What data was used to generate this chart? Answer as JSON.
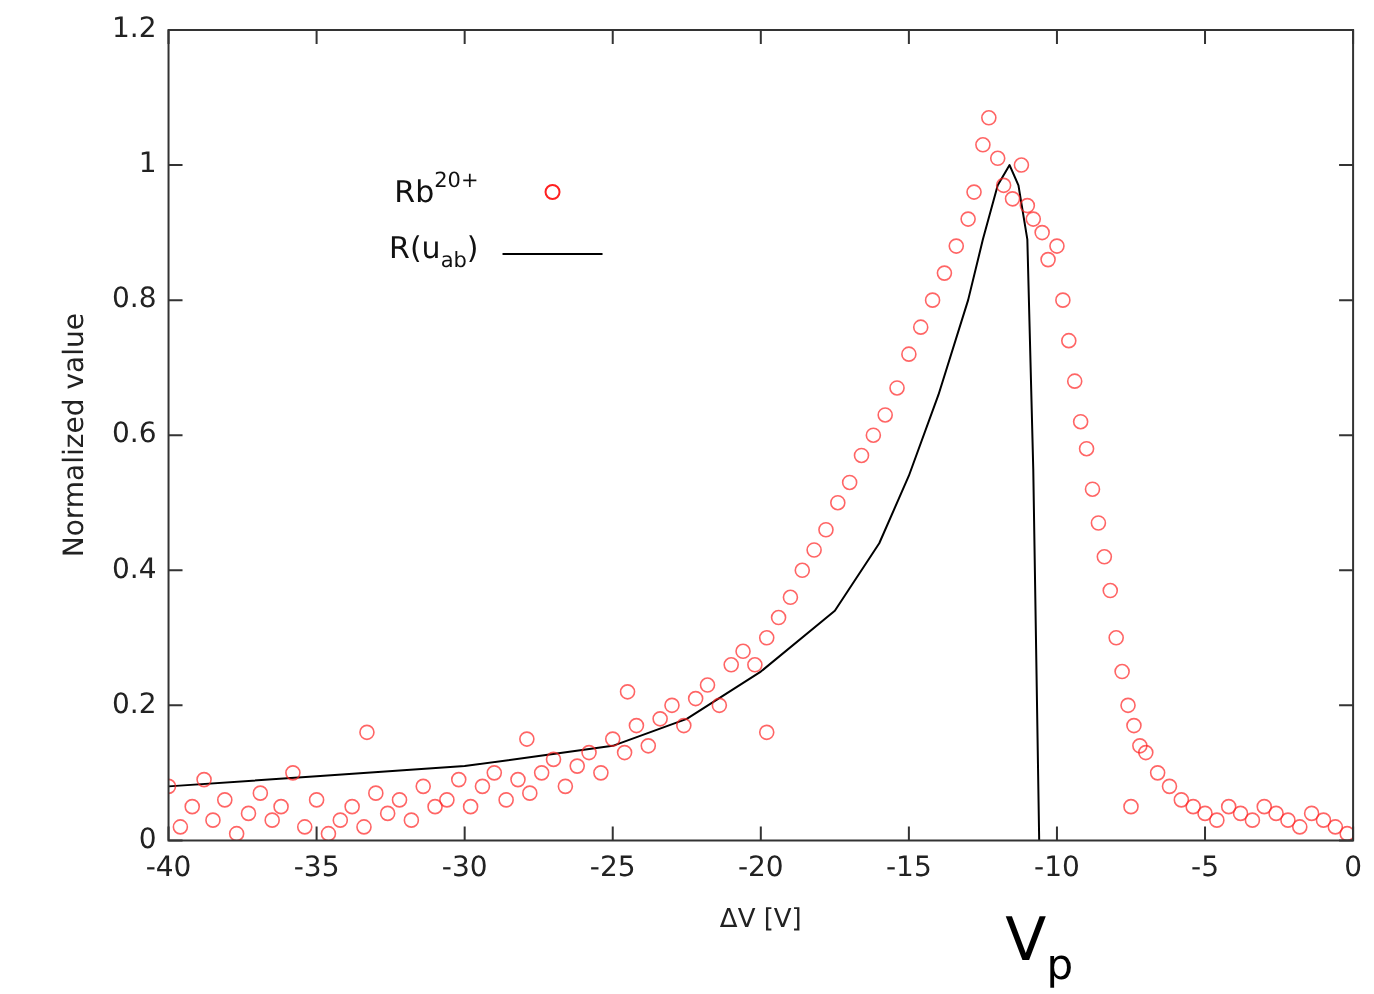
{
  "chart_data": {
    "type": "scatter",
    "xlabel": "ΔV [V]",
    "ylabel": "Normalized value",
    "xlim": [
      -40,
      0
    ],
    "ylim": [
      0,
      1.2
    ],
    "xticks": [
      -40,
      -35,
      -30,
      -25,
      -20,
      -15,
      -10,
      -5,
      0
    ],
    "yticks": [
      0,
      0.2,
      0.4,
      0.6,
      0.8,
      1,
      1.2
    ],
    "grid": false,
    "legend": "top left",
    "marker": "circle",
    "annotations": [
      "V$_{p}$"
    ],
    "series": [
      {
        "name": "Rb$^{20+}$",
        "color": "#ff2020",
        "x": [
          -40,
          -39.6,
          -39.2,
          -38.8,
          -38.5,
          -38.1,
          -37.7,
          -37.3,
          -36.9,
          -36.5,
          -36.2,
          -35.8,
          -35.4,
          -35,
          -34.6,
          -34.2,
          -33.8,
          -33.4,
          -33,
          -32.6,
          -32.2,
          -31.8,
          -31.4,
          -31,
          -30.6,
          -30.2,
          -29.8,
          -29.4,
          -29,
          -28.6,
          -28.2,
          -27.8,
          -27.4,
          -27,
          -26.6,
          -26.2,
          -25.8,
          -25.4,
          -25,
          -24.6,
          -24.2,
          -23.8,
          -23.4,
          -23,
          -22.6,
          -22.2,
          -21.8,
          -21.4,
          -21,
          -20.6,
          -20.2,
          -19.8,
          -19.4,
          -19,
          -18.6,
          -18.2,
          -17.8,
          -17.4,
          -17,
          -16.6,
          -16.2,
          -15.8,
          -15.4,
          -15,
          -14.6,
          -14.2,
          -13.8,
          -13.4,
          -13,
          -12.8,
          -12.5,
          -12.3,
          -12,
          -11.8,
          -11.5,
          -11.2,
          -11,
          -10.8,
          -10.5,
          -10.3,
          -10,
          -9.8,
          -9.6,
          -9.4,
          -9.2,
          -9,
          -8.8,
          -8.6,
          -8.4,
          -8.2,
          -8,
          -7.8,
          -7.6,
          -7.4,
          -7.2,
          -7,
          -6.6,
          -6.2,
          -5.8,
          -5.4,
          -5,
          -4.6,
          -4.2,
          -3.8,
          -3.4,
          -3,
          -2.6,
          -2.2,
          -1.8,
          -1.4,
          -1,
          -0.6,
          -0.2,
          -33.3,
          -27.9,
          -24.5,
          -19.8,
          -7.5
        ],
        "values": [
          0.08,
          0.02,
          0.05,
          0.09,
          0.03,
          0.06,
          0.01,
          0.04,
          0.07,
          0.03,
          0.05,
          0.1,
          0.02,
          0.06,
          0.01,
          0.03,
          0.05,
          0.02,
          0.07,
          0.04,
          0.06,
          0.03,
          0.08,
          0.05,
          0.06,
          0.09,
          0.05,
          0.08,
          0.1,
          0.06,
          0.09,
          0.07,
          0.1,
          0.12,
          0.08,
          0.11,
          0.13,
          0.1,
          0.15,
          0.13,
          0.17,
          0.14,
          0.18,
          0.2,
          0.17,
          0.21,
          0.23,
          0.2,
          0.26,
          0.28,
          0.26,
          0.3,
          0.33,
          0.36,
          0.4,
          0.43,
          0.46,
          0.5,
          0.53,
          0.57,
          0.6,
          0.63,
          0.67,
          0.72,
          0.76,
          0.8,
          0.84,
          0.88,
          0.92,
          0.96,
          1.03,
          1.07,
          1.01,
          0.97,
          0.95,
          1.0,
          0.94,
          0.92,
          0.9,
          0.86,
          0.88,
          0.8,
          0.74,
          0.68,
          0.62,
          0.58,
          0.52,
          0.47,
          0.42,
          0.37,
          0.3,
          0.25,
          0.2,
          0.17,
          0.14,
          0.13,
          0.1,
          0.08,
          0.06,
          0.05,
          0.04,
          0.03,
          0.05,
          0.04,
          0.03,
          0.05,
          0.04,
          0.03,
          0.02,
          0.04,
          0.03,
          0.02,
          0.01,
          0.16,
          0.15,
          0.22,
          0.16,
          0.05
        ]
      },
      {
        "name": "R(u$_{ab}$)",
        "type": "line",
        "color": "#000000",
        "marker": "none",
        "x": [
          -40,
          -35,
          -30,
          -27.5,
          -25,
          -22.5,
          -20,
          -17.5,
          -16,
          -15,
          -14,
          -13,
          -12.5,
          -12,
          -11.6,
          -11.3,
          -11,
          -10.8,
          -10.6
        ],
        "values": [
          0.08,
          0.095,
          0.11,
          0.125,
          0.14,
          0.18,
          0.25,
          0.34,
          0.44,
          0.54,
          0.66,
          0.8,
          0.89,
          0.97,
          1.0,
          0.97,
          0.89,
          0.55,
          0
        ]
      }
    ]
  }
}
